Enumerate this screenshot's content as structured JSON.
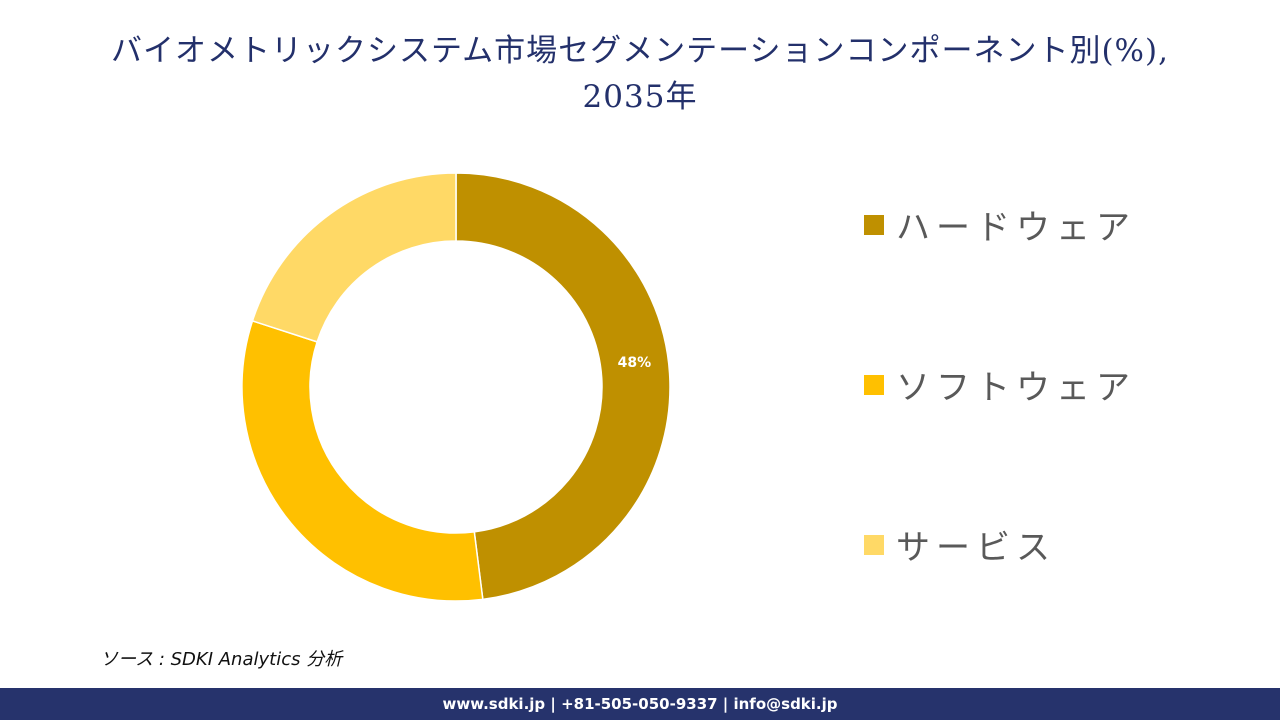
{
  "title": {
    "line1": "バイオメトリックシステム市場セグメンテーションコンポーネント別(%),",
    "line2": "2035年"
  },
  "chart_data": {
    "type": "pie",
    "subtype": "donut",
    "title": "バイオメトリックシステム市場セグメンテーションコンポーネント別(%), 2035年",
    "categories": [
      "ハードウェア",
      "ソフトウェア",
      "サービス"
    ],
    "values": [
      48,
      32,
      20
    ],
    "unit": "%",
    "colors": [
      "#bf9000",
      "#ffc000",
      "#ffd966"
    ],
    "data_labels": [
      {
        "category": "ハードウェア",
        "text": "48%"
      }
    ],
    "start_angle_deg": 0,
    "direction": "clockwise",
    "legend_position": "right"
  },
  "legend": {
    "items": [
      {
        "label": "ハードウェア",
        "color": "#bf9000"
      },
      {
        "label": "ソフトウェア",
        "color": "#ffc000"
      },
      {
        "label": "サービス",
        "color": "#ffd966"
      }
    ]
  },
  "labels": {
    "hardware_pct": "48%"
  },
  "source": {
    "text": "ソース : SDKI Analytics  分析"
  },
  "footer": {
    "text": "www.sdki.jp | +81-505-050-9337 | info@sdki.jp",
    "background": "#26336c"
  }
}
